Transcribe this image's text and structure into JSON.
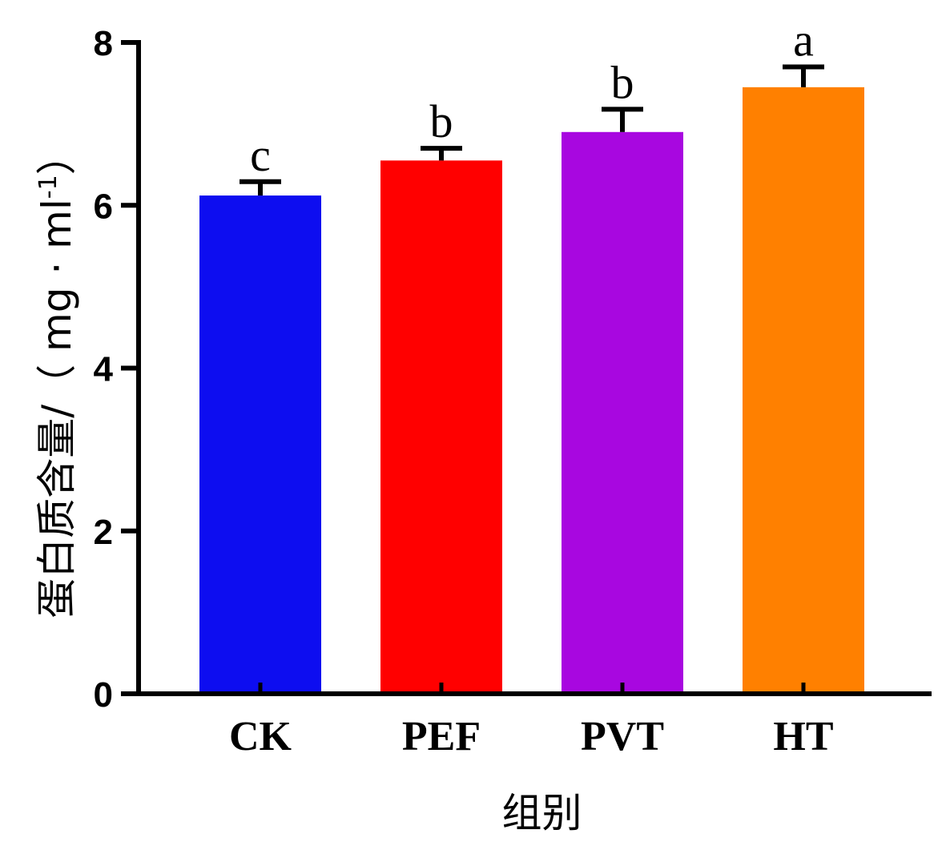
{
  "chart_data": {
    "type": "bar",
    "categories": [
      "CK",
      "PEF",
      "PVT",
      "HT"
    ],
    "values": [
      6.12,
      6.55,
      6.9,
      7.45
    ],
    "errors": [
      0.17,
      0.15,
      0.28,
      0.25
    ],
    "significance": [
      "c",
      "b",
      "b",
      "a"
    ],
    "colors": [
      "#0d0df0",
      "#ff0000",
      "#a807e0",
      "#ff8000"
    ],
    "xlabel": "组别",
    "ylabel": "蛋白质含量/（mg · ml-1）",
    "ylabel_main": "蛋白质含量/（ mg · ml",
    "ylabel_sup": "-1",
    "ylabel_close": "）",
    "ylim": [
      0,
      8
    ],
    "yticks": [
      0,
      2,
      4,
      6,
      8
    ],
    "grid": false,
    "legend": "none"
  }
}
